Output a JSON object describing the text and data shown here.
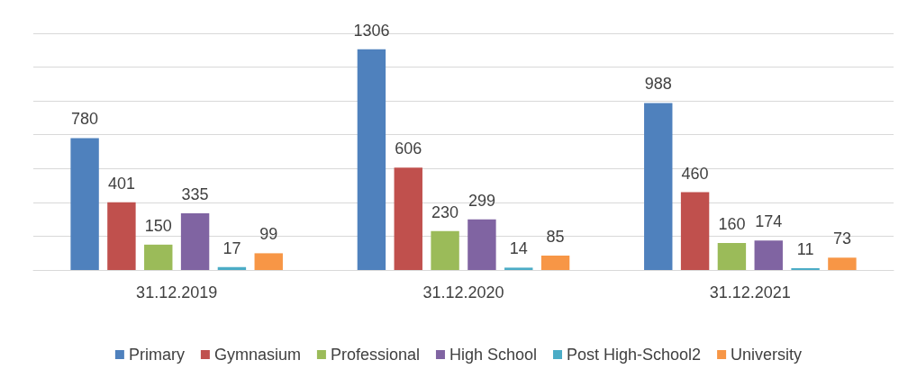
{
  "chart_data": {
    "type": "bar",
    "categories": [
      "31.12.2019",
      "31.12.2020",
      "31.12.2021"
    ],
    "series": [
      {
        "name": "Primary",
        "color": "#4f81bd",
        "values": [
          780,
          1306,
          988
        ]
      },
      {
        "name": "Gymnasium",
        "color": "#c0504d",
        "values": [
          401,
          606,
          460
        ]
      },
      {
        "name": "Professional",
        "color": "#9bbb59",
        "values": [
          150,
          230,
          160
        ]
      },
      {
        "name": "High School",
        "color": "#8064a2",
        "values": [
          335,
          299,
          174
        ]
      },
      {
        "name": "Post High-School2",
        "color": "#4bacc6",
        "values": [
          17,
          14,
          11
        ]
      },
      {
        "name": "University",
        "color": "#f79646",
        "values": [
          99,
          85,
          73
        ]
      }
    ],
    "ylim": [
      0,
      1400
    ],
    "yticks": [
      {
        "value": 0,
        "label": null
      },
      {
        "value": 200,
        "label": null
      },
      {
        "value": 400,
        "label": null
      },
      {
        "value": 600,
        "label": null
      },
      {
        "value": 800,
        "label": null
      },
      {
        "value": 1000,
        "label": null
      },
      {
        "value": 1200,
        "label": null
      },
      {
        "value": 1400,
        "label": null
      }
    ],
    "grid": "y",
    "legend": "bottom",
    "data_labels": true,
    "tick_labels": "x"
  }
}
